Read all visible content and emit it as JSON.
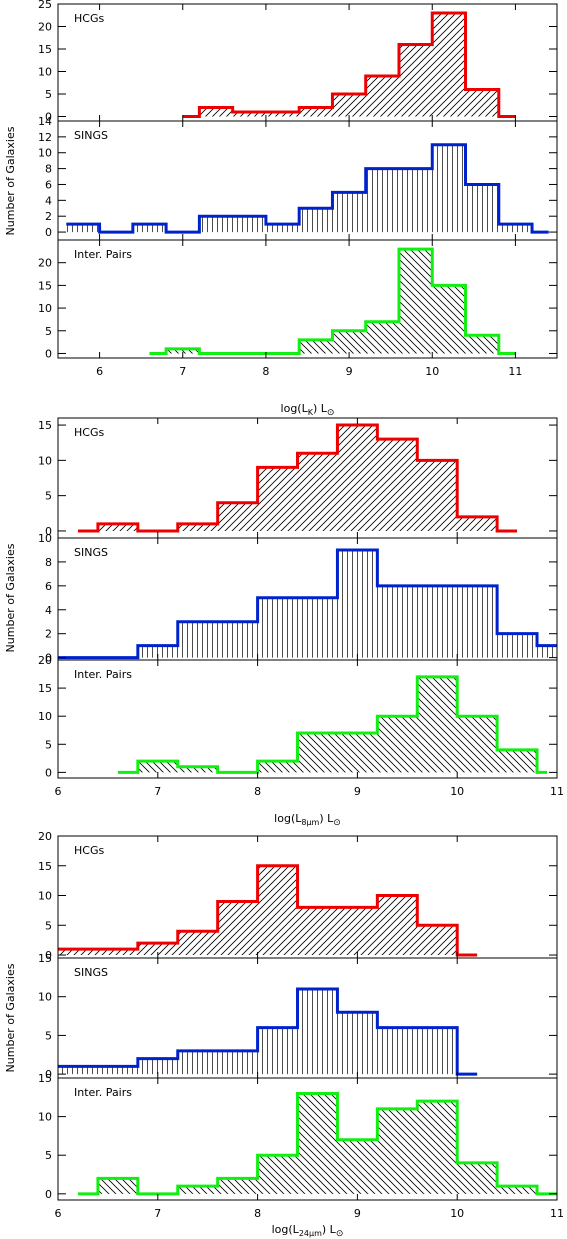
{
  "chart_data": [
    {
      "type": "bar",
      "title": "",
      "xlabel_main": "log(L",
      "xlabel_sub": "K",
      "xlabel_tail": ") L",
      "xlabel_sym": "⊙",
      "ylabel": "Number of Galaxies",
      "xlim": [
        5.5,
        11.5
      ],
      "xticks": [
        6,
        7,
        8,
        9,
        10,
        11
      ],
      "xtick_labels": [
        "6",
        "7",
        "8",
        "9",
        "10",
        "11"
      ],
      "panels": [
        {
          "label": "HCGs",
          "color": "#ee0000",
          "hatch": "diag-right",
          "ylim": [
            -1,
            25
          ],
          "yticks": [
            0,
            5,
            10,
            15,
            20,
            25
          ],
          "ytick_labels": [
            "0",
            "5",
            "10",
            "15",
            "20",
            "25"
          ],
          "edges": [
            7.0,
            7.2,
            7.6,
            8.0,
            8.4,
            8.8,
            9.2,
            9.6,
            10.0,
            10.4,
            10.8,
            11.0
          ],
          "counts": [
            0,
            2,
            1,
            1,
            2,
            5,
            9,
            16,
            23,
            6,
            0
          ]
        },
        {
          "label": "SINGS",
          "color": "#0022cc",
          "hatch": "vertical",
          "ylim": [
            -1,
            14
          ],
          "yticks": [
            0,
            2,
            4,
            6,
            8,
            10,
            12,
            14
          ],
          "ytick_labels": [
            "0",
            "2",
            "4",
            "6",
            "8",
            "10",
            "12",
            "14"
          ],
          "edges": [
            5.6,
            6.0,
            6.4,
            6.8,
            7.2,
            7.6,
            8.0,
            8.4,
            8.8,
            9.2,
            9.6,
            10.0,
            10.4,
            10.8,
            11.2,
            11.4
          ],
          "counts": [
            1,
            0,
            1,
            0,
            2,
            2,
            1,
            3,
            5,
            8,
            8,
            11,
            6,
            1,
            0
          ]
        },
        {
          "label": "Inter. Pairs",
          "color": "#11ee11",
          "hatch": "diag-left",
          "ylim": [
            -1,
            25
          ],
          "yticks": [
            0,
            5,
            10,
            15,
            20
          ],
          "ytick_labels": [
            "0",
            "5",
            "10",
            "15",
            "20"
          ],
          "edges": [
            6.6,
            6.8,
            7.2,
            7.6,
            8.0,
            8.4,
            8.8,
            9.2,
            9.6,
            10.0,
            10.4,
            10.8,
            11.0
          ],
          "counts": [
            0,
            1,
            0,
            0,
            0,
            3,
            5,
            7,
            23,
            15,
            4,
            0
          ]
        }
      ]
    },
    {
      "type": "bar",
      "title": "",
      "xlabel_main": "log(L",
      "xlabel_sub": "8μm",
      "xlabel_tail": ") L",
      "xlabel_sym": "⊙",
      "ylabel": "Number of Galaxies",
      "xlim": [
        6,
        11
      ],
      "xticks": [
        6,
        7,
        8,
        9,
        10,
        11
      ],
      "xtick_labels": [
        "6",
        "7",
        "8",
        "9",
        "10",
        "11"
      ],
      "panels": [
        {
          "label": "HCGs",
          "color": "#ee0000",
          "hatch": "diag-right",
          "ylim": [
            -1,
            16
          ],
          "yticks": [
            0,
            5,
            10,
            15
          ],
          "ytick_labels": [
            "0",
            "5",
            "10",
            "15"
          ],
          "edges": [
            6.2,
            6.4,
            6.8,
            7.2,
            7.6,
            8.0,
            8.4,
            8.8,
            9.2,
            9.6,
            10.0,
            10.4,
            10.6
          ],
          "counts": [
            0,
            1,
            0,
            1,
            4,
            9,
            11,
            15,
            13,
            10,
            2,
            0
          ]
        },
        {
          "label": "SINGS",
          "color": "#0022cc",
          "hatch": "vertical",
          "ylim": [
            -0.2,
            10
          ],
          "yticks": [
            0,
            2,
            4,
            6,
            8,
            10
          ],
          "ytick_labels": [
            "0",
            "2",
            "4",
            "6",
            "8",
            "10"
          ],
          "edges": [
            6.0,
            6.8,
            7.2,
            7.6,
            8.0,
            8.4,
            8.8,
            9.2,
            9.6,
            10.0,
            10.4,
            10.8,
            11.0
          ],
          "counts": [
            0,
            1,
            3,
            3,
            5,
            5,
            9,
            6,
            6,
            6,
            2,
            1
          ]
        },
        {
          "label": "Inter. Pairs",
          "color": "#11ee11",
          "hatch": "diag-left",
          "ylim": [
            -1,
            20
          ],
          "yticks": [
            0,
            5,
            10,
            15,
            20
          ],
          "ytick_labels": [
            "0",
            "5",
            "10",
            "15",
            "20"
          ],
          "edges": [
            6.6,
            6.8,
            7.2,
            7.6,
            8.0,
            8.4,
            8.8,
            9.2,
            9.6,
            10.0,
            10.4,
            10.8,
            10.9
          ],
          "counts": [
            0,
            2,
            1,
            0,
            2,
            7,
            7,
            10,
            17,
            10,
            4,
            0
          ]
        }
      ]
    },
    {
      "type": "bar",
      "title": "",
      "xlabel_main": "log(L",
      "xlabel_sub": "24μm",
      "xlabel_tail": ") L",
      "xlabel_sym": "⊙",
      "ylabel": "Number of Galaxies",
      "xlim": [
        6,
        11
      ],
      "xticks": [
        6,
        7,
        8,
        9,
        10,
        11
      ],
      "xtick_labels": [
        "6",
        "7",
        "8",
        "9",
        "10",
        "11"
      ],
      "panels": [
        {
          "label": "HCGs",
          "color": "#ee0000",
          "hatch": "diag-right",
          "ylim": [
            -0.5,
            20
          ],
          "yticks": [
            0,
            5,
            10,
            15,
            20
          ],
          "ytick_labels": [
            "0",
            "5",
            "10",
            "15",
            "20"
          ],
          "edges": [
            6.0,
            6.8,
            7.2,
            7.6,
            8.0,
            8.4,
            9.2,
            9.6,
            10.0,
            10.2
          ],
          "counts": [
            1,
            2,
            4,
            9,
            15,
            8,
            10,
            5,
            0
          ]
        },
        {
          "label": "SINGS",
          "color": "#0022cc",
          "hatch": "vertical",
          "ylim": [
            -0.5,
            15
          ],
          "yticks": [
            0,
            5,
            10,
            15
          ],
          "ytick_labels": [
            "0",
            "5",
            "10",
            "15"
          ],
          "edges": [
            6.0,
            6.8,
            7.2,
            8.0,
            8.4,
            8.8,
            9.2,
            10.0,
            10.2
          ],
          "counts": [
            1,
            2,
            3,
            6,
            11,
            8,
            6,
            0
          ]
        },
        {
          "label": "Inter. Pairs",
          "color": "#11ee11",
          "hatch": "diag-left",
          "ylim": [
            -0.8,
            15
          ],
          "yticks": [
            0,
            5,
            10,
            15
          ],
          "ytick_labels": [
            "0",
            "5",
            "10",
            "15"
          ],
          "edges": [
            6.2,
            6.4,
            6.8,
            7.2,
            7.6,
            8.0,
            8.4,
            8.8,
            9.2,
            9.6,
            10.0,
            10.4,
            10.8,
            11.0
          ],
          "counts": [
            0,
            2,
            0,
            1,
            2,
            5,
            13,
            7,
            11,
            12,
            4,
            1,
            0
          ]
        }
      ]
    }
  ]
}
